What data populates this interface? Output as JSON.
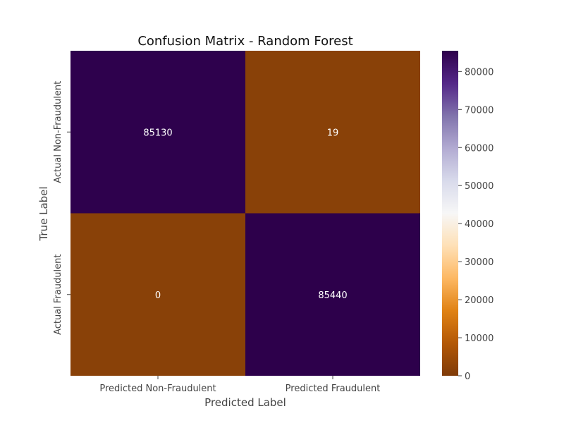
{
  "chart_data": {
    "type": "heatmap",
    "title": "Confusion Matrix - Random Forest",
    "xlabel": "Predicted Label",
    "ylabel": "True Label",
    "x_categories": [
      "Predicted Non-Fraudulent",
      "Predicted Fraudulent"
    ],
    "y_categories": [
      "Actual Non-Fraudulent",
      "Actual Fraudulent"
    ],
    "values": [
      [
        85130,
        19
      ],
      [
        0,
        85440
      ]
    ],
    "colormap": "PuOr",
    "colorbar": {
      "ticks": [
        0,
        10000,
        20000,
        30000,
        40000,
        50000,
        60000,
        70000,
        80000
      ],
      "tick_labels": [
        "0",
        "10000",
        "20000",
        "30000",
        "40000",
        "50000",
        "60000",
        "70000",
        "80000"
      ],
      "range": [
        0,
        85440
      ]
    },
    "colors": {
      "low": "#7f3b08",
      "high": "#2d004b",
      "cell_text": "#ffffff"
    }
  }
}
